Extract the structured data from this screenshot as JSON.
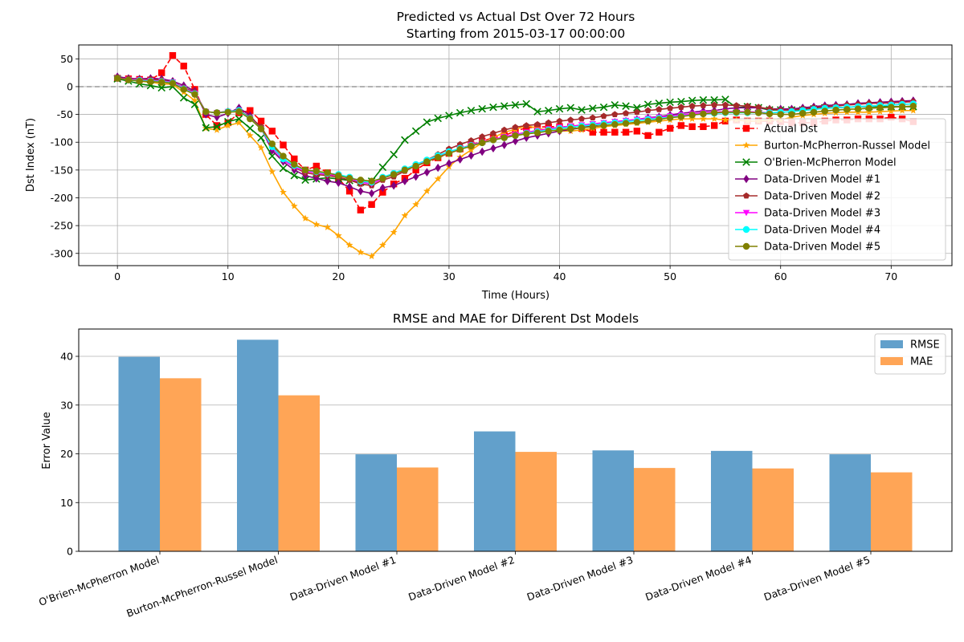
{
  "chart_data": [
    {
      "type": "line",
      "title": "Predicted vs Actual Dst Over 72 Hours",
      "subtitle": "Starting from 2015-03-17 00:00:00",
      "xlabel": "Time (Hours)",
      "ylabel": "Dst Index (nT)",
      "xlim": [
        -3.5,
        75.5
      ],
      "ylim": [
        -322,
        75
      ],
      "xticks": [
        0,
        10,
        20,
        30,
        40,
        50,
        60,
        70
      ],
      "yticks": [
        -300,
        -250,
        -200,
        -150,
        -100,
        -50,
        0,
        50
      ],
      "reference_line": {
        "y": 0,
        "color": "#999999",
        "style": "dashed"
      },
      "grid": true,
      "legend_position": "lower-right",
      "x": [
        0,
        1,
        2,
        3,
        4,
        5,
        6,
        7,
        8,
        9,
        10,
        11,
        12,
        13,
        14,
        15,
        16,
        17,
        18,
        19,
        20,
        21,
        22,
        23,
        24,
        25,
        26,
        27,
        28,
        29,
        30,
        31,
        32,
        33,
        34,
        35,
        36,
        37,
        38,
        39,
        40,
        41,
        42,
        43,
        44,
        45,
        46,
        47,
        48,
        49,
        50,
        51,
        52,
        53,
        54,
        55,
        56,
        57,
        58,
        59,
        60,
        61,
        62,
        63,
        64,
        65,
        66,
        67,
        68,
        69,
        70,
        71,
        72
      ],
      "series": [
        {
          "name": "Actual Dst",
          "color": "#ff0000",
          "marker": "square",
          "dashed": true,
          "values": [
            15,
            14,
            13,
            12,
            25,
            56,
            37,
            -5,
            -50,
            -70,
            -65,
            -47,
            -43,
            -62,
            -80,
            -105,
            -130,
            -150,
            -143,
            -155,
            -165,
            -188,
            -222,
            -212,
            -190,
            -175,
            -165,
            -150,
            -137,
            -128,
            -120,
            -112,
            -105,
            -98,
            -92,
            -88,
            -80,
            -74,
            -73,
            -72,
            -72,
            -72,
            -75,
            -82,
            -82,
            -82,
            -82,
            -80,
            -88,
            -82,
            -75,
            -70,
            -72,
            -72,
            -70,
            -62,
            -60,
            -62,
            -62,
            -62,
            -63,
            -65,
            -65,
            -65,
            -62,
            -60,
            -60,
            -58,
            -58,
            -58,
            -55,
            -58,
            -63
          ]
        },
        {
          "name": "Burton-McPherron-Russel Model",
          "color": "#ffa500",
          "marker": "star",
          "dashed": false,
          "values": [
            14,
            12,
            10,
            8,
            5,
            4,
            -10,
            -25,
            -75,
            -78,
            -70,
            -65,
            -88,
            -110,
            -153,
            -190,
            -215,
            -237,
            -248,
            -253,
            -268,
            -285,
            -298,
            -305,
            -285,
            -262,
            -232,
            -212,
            -188,
            -166,
            -144,
            -127,
            -114,
            -101,
            -92,
            -82,
            -77,
            -70,
            -75,
            -78,
            -80,
            -80,
            -78,
            -75,
            -72,
            -70,
            -68,
            -66,
            -64,
            -62,
            -60,
            -58,
            -58,
            -58,
            -58,
            -60,
            -60,
            -62,
            -62,
            -60,
            -60,
            -55,
            -52,
            -50,
            -48,
            -47,
            -46,
            -46,
            -46,
            -45,
            -44,
            -43,
            -43
          ]
        },
        {
          "name": "O'Brien-McPherron Model",
          "color": "#008000",
          "marker": "x",
          "dashed": false,
          "values": [
            14,
            10,
            5,
            2,
            -2,
            0,
            -20,
            -32,
            -74,
            -72,
            -63,
            -58,
            -75,
            -92,
            -125,
            -147,
            -160,
            -168,
            -166,
            -164,
            -166,
            -169,
            -172,
            -170,
            -145,
            -122,
            -96,
            -80,
            -64,
            -57,
            -52,
            -47,
            -43,
            -40,
            -37,
            -35,
            -33,
            -31,
            -45,
            -43,
            -40,
            -38,
            -42,
            -39,
            -37,
            -33,
            -35,
            -38,
            -32,
            -30,
            -28,
            -27,
            -25,
            -24,
            -24,
            -23,
            -38,
            -36,
            -38,
            -42,
            -42,
            -42,
            -42,
            -40,
            -38,
            -38,
            -37,
            -36,
            -36,
            -36,
            -36,
            -36,
            -36
          ]
        },
        {
          "name": "Data-Driven Model #1",
          "color": "#800080",
          "marker": "diamond",
          "dashed": false,
          "values": [
            18,
            15,
            14,
            15,
            14,
            10,
            2,
            -8,
            -50,
            -55,
            -48,
            -38,
            -52,
            -75,
            -115,
            -135,
            -150,
            -160,
            -165,
            -170,
            -173,
            -180,
            -188,
            -192,
            -182,
            -178,
            -170,
            -162,
            -154,
            -146,
            -138,
            -131,
            -124,
            -117,
            -111,
            -105,
            -98,
            -92,
            -88,
            -84,
            -80,
            -77,
            -74,
            -70,
            -67,
            -64,
            -62,
            -59,
            -56,
            -54,
            -51,
            -48,
            -46,
            -44,
            -43,
            -40,
            -38,
            -38,
            -38,
            -40,
            -40,
            -40,
            -38,
            -36,
            -34,
            -33,
            -32,
            -30,
            -29,
            -28,
            -27,
            -26,
            -25
          ]
        },
        {
          "name": "Data-Driven Model #2",
          "color": "#a52a2a",
          "marker": "pentagon",
          "dashed": false,
          "values": [
            16,
            14,
            13,
            13,
            12,
            8,
            -2,
            -10,
            -45,
            -47,
            -44,
            -43,
            -55,
            -72,
            -105,
            -130,
            -145,
            -155,
            -158,
            -160,
            -163,
            -168,
            -175,
            -178,
            -168,
            -162,
            -152,
            -142,
            -132,
            -122,
            -112,
            -104,
            -97,
            -90,
            -84,
            -78,
            -73,
            -70,
            -68,
            -65,
            -62,
            -60,
            -58,
            -56,
            -53,
            -50,
            -48,
            -46,
            -43,
            -41,
            -39,
            -37,
            -35,
            -34,
            -33,
            -33,
            -34,
            -35,
            -37,
            -40,
            -42,
            -42,
            -40,
            -38,
            -36,
            -35,
            -33,
            -32,
            -30,
            -30,
            -29,
            -28,
            -27
          ]
        },
        {
          "name": "Data-Driven Model #3",
          "color": "#ff00ff",
          "marker": "triangle-down",
          "dashed": false,
          "values": [
            15,
            13,
            12,
            11,
            10,
            8,
            -3,
            -12,
            -45,
            -47,
            -45,
            -43,
            -57,
            -76,
            -110,
            -132,
            -145,
            -152,
            -155,
            -158,
            -160,
            -165,
            -172,
            -175,
            -165,
            -158,
            -150,
            -142,
            -134,
            -126,
            -118,
            -111,
            -105,
            -100,
            -95,
            -90,
            -86,
            -82,
            -79,
            -76,
            -73,
            -71,
            -69,
            -67,
            -65,
            -63,
            -61,
            -59,
            -57,
            -55,
            -53,
            -51,
            -49,
            -47,
            -46,
            -45,
            -45,
            -45,
            -46,
            -47,
            -46,
            -45,
            -43,
            -41,
            -39,
            -38,
            -37,
            -36,
            -35,
            -34,
            -33,
            -32,
            -31
          ]
        },
        {
          "name": "Data-Driven Model #4",
          "color": "#00ffff",
          "marker": "circle",
          "dashed": false,
          "values": [
            15,
            12,
            11,
            10,
            9,
            7,
            -4,
            -13,
            -45,
            -47,
            -45,
            -43,
            -57,
            -76,
            -108,
            -130,
            -142,
            -150,
            -153,
            -156,
            -158,
            -163,
            -170,
            -172,
            -163,
            -156,
            -148,
            -140,
            -132,
            -124,
            -117,
            -111,
            -106,
            -101,
            -96,
            -92,
            -88,
            -84,
            -81,
            -78,
            -75,
            -73,
            -71,
            -69,
            -67,
            -65,
            -63,
            -61,
            -59,
            -57,
            -55,
            -53,
            -51,
            -49,
            -48,
            -47,
            -47,
            -47,
            -47,
            -47,
            -46,
            -45,
            -43,
            -41,
            -39,
            -38,
            -37,
            -36,
            -35,
            -34,
            -33,
            -32,
            -31
          ]
        },
        {
          "name": "Data-Driven Model #5",
          "color": "#808000",
          "marker": "circle",
          "dashed": false,
          "values": [
            15,
            12,
            10,
            9,
            8,
            6,
            -5,
            -14,
            -45,
            -47,
            -46,
            -45,
            -58,
            -76,
            -103,
            -125,
            -140,
            -150,
            -152,
            -155,
            -160,
            -165,
            -168,
            -170,
            -165,
            -158,
            -150,
            -143,
            -135,
            -127,
            -120,
            -113,
            -107,
            -101,
            -96,
            -92,
            -88,
            -85,
            -83,
            -80,
            -78,
            -76,
            -74,
            -72,
            -70,
            -68,
            -66,
            -64,
            -62,
            -59,
            -56,
            -54,
            -51,
            -49,
            -47,
            -46,
            -46,
            -46,
            -47,
            -49,
            -50,
            -50,
            -48,
            -46,
            -44,
            -42,
            -41,
            -40,
            -39,
            -38,
            -37,
            -36,
            -35
          ]
        }
      ]
    },
    {
      "type": "bar",
      "title": "RMSE and MAE for Different Dst Models",
      "xlabel": "",
      "ylabel": "Error Value",
      "ylim": [
        0,
        45.6
      ],
      "yticks": [
        0,
        10,
        20,
        30,
        40
      ],
      "grid": true,
      "legend_position": "top-right",
      "categories": [
        "O'Brien-McPherron Model",
        "Burton-McPherron-Russel Model",
        "Data-Driven Model #1",
        "Data-Driven Model #2",
        "Data-Driven Model #3",
        "Data-Driven Model #4",
        "Data-Driven Model #5"
      ],
      "series": [
        {
          "name": "RMSE",
          "color": "#62a0cb",
          "values": [
            39.9,
            43.4,
            19.9,
            24.6,
            20.7,
            20.6,
            19.9
          ]
        },
        {
          "name": "MAE",
          "color": "#ffa556",
          "values": [
            35.5,
            32.0,
            17.2,
            20.4,
            17.1,
            17.0,
            16.2
          ]
        }
      ]
    }
  ]
}
